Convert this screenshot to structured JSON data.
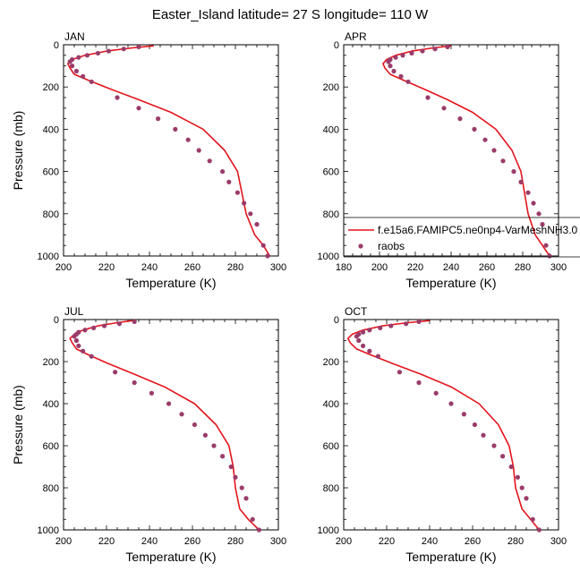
{
  "figure": {
    "title": "Easter_Island  latitude= 27 S longitude= 110 W",
    "legend": {
      "model_label": "f.e15a6.FAMIPC5.ne0np4-VarMeshNH3.0",
      "obs_label": "raobs",
      "placement": "lower-right of APR panel"
    },
    "colors": {
      "model": "#e4141c",
      "obs": "#9a3c6a"
    }
  },
  "chart_data": [
    {
      "type": "line",
      "label": "JAN",
      "xlabel": "Temperature (K)",
      "ylabel": "Pressure (mb)",
      "xlim": [
        200,
        300
      ],
      "ylim": [
        1000,
        0
      ],
      "xticks": [
        200,
        220,
        240,
        260,
        280,
        300
      ],
      "yticks": [
        0,
        200,
        400,
        600,
        800,
        1000
      ],
      "model": {
        "T": [
          242,
          232,
          220,
          210,
          204,
          202,
          203,
          205,
          212,
          222,
          235,
          250,
          265,
          275,
          281,
          283,
          285,
          289,
          293,
          296
        ],
        "P": [
          5,
          15,
          30,
          50,
          70,
          90,
          110,
          140,
          170,
          210,
          260,
          320,
          400,
          500,
          600,
          700,
          800,
          900,
          950,
          1000
        ]
      },
      "obs": {
        "T": [
          235,
          228,
          221,
          216,
          211,
          207,
          204,
          203,
          204,
          206,
          209,
          213,
          225,
          235,
          244,
          252,
          258,
          263,
          268,
          274,
          277,
          281,
          284,
          287,
          290,
          293,
          295
        ],
        "P": [
          10,
          20,
          30,
          40,
          50,
          60,
          70,
          80,
          100,
          125,
          150,
          175,
          250,
          300,
          350,
          400,
          450,
          500,
          550,
          600,
          650,
          700,
          750,
          800,
          850,
          950,
          1000
        ]
      }
    },
    {
      "type": "line",
      "label": "APR",
      "xlabel": "Temperature (K)",
      "ylabel": "",
      "xlim": [
        180,
        300
      ],
      "ylim": [
        1000,
        0
      ],
      "xticks": [
        180,
        200,
        220,
        240,
        260,
        280,
        300
      ],
      "yticks": [
        0,
        200,
        400,
        600,
        800,
        1000
      ],
      "model": {
        "T": [
          240,
          230,
          218,
          209,
          204,
          202,
          203,
          206,
          214,
          225,
          238,
          252,
          265,
          274,
          279,
          281,
          283,
          287,
          291,
          295
        ],
        "P": [
          5,
          15,
          30,
          50,
          70,
          90,
          110,
          140,
          170,
          210,
          260,
          320,
          400,
          500,
          600,
          700,
          800,
          900,
          950,
          1000
        ]
      },
      "obs": {
        "T": [
          238,
          231,
          224,
          218,
          213,
          209,
          206,
          205,
          206,
          208,
          212,
          216,
          227,
          236,
          245,
          253,
          259,
          264,
          269,
          275,
          279,
          283,
          286,
          289,
          291,
          293,
          295
        ],
        "P": [
          10,
          20,
          30,
          40,
          50,
          60,
          70,
          80,
          100,
          125,
          150,
          175,
          250,
          300,
          350,
          400,
          450,
          500,
          550,
          600,
          650,
          700,
          750,
          800,
          850,
          950,
          1000
        ]
      }
    },
    {
      "type": "line",
      "label": "JUL",
      "xlabel": "Temperature (K)",
      "ylabel": "Pressure (mb)",
      "xlim": [
        200,
        300
      ],
      "ylim": [
        1000,
        0
      ],
      "xticks": [
        200,
        220,
        240,
        260,
        280,
        300
      ],
      "yticks": [
        0,
        200,
        400,
        600,
        800,
        1000
      ],
      "model": {
        "T": [
          232,
          225,
          216,
          209,
          205,
          203,
          204,
          206,
          212,
          221,
          233,
          247,
          261,
          271,
          277,
          279,
          280,
          282,
          286,
          291
        ],
        "P": [
          5,
          15,
          30,
          50,
          70,
          90,
          110,
          140,
          170,
          210,
          260,
          320,
          400,
          500,
          600,
          700,
          800,
          900,
          950,
          1000
        ]
      },
      "obs": {
        "T": [
          233,
          226,
          219,
          214,
          210,
          207,
          206,
          205,
          206,
          207,
          209,
          213,
          224,
          233,
          241,
          249,
          255,
          261,
          266,
          270,
          274,
          278,
          280,
          283,
          285,
          288,
          291
        ],
        "P": [
          10,
          20,
          30,
          40,
          50,
          60,
          70,
          80,
          100,
          125,
          150,
          175,
          250,
          300,
          350,
          400,
          450,
          500,
          550,
          600,
          650,
          700,
          750,
          800,
          850,
          950,
          1000
        ]
      }
    },
    {
      "type": "line",
      "label": "OCT",
      "xlabel": "Temperature (K)",
      "ylabel": "",
      "xlim": [
        200,
        300
      ],
      "ylim": [
        1000,
        0
      ],
      "xticks": [
        200,
        220,
        240,
        260,
        280,
        300
      ],
      "yticks": [
        0,
        200,
        400,
        600,
        800,
        1000
      ],
      "model": {
        "T": [
          240,
          230,
          218,
          209,
          204,
          202,
          203,
          206,
          213,
          223,
          236,
          250,
          263,
          272,
          277,
          279,
          280,
          283,
          287,
          291
        ],
        "P": [
          5,
          15,
          30,
          50,
          70,
          90,
          110,
          140,
          170,
          210,
          260,
          320,
          400,
          500,
          600,
          700,
          800,
          900,
          950,
          1000
        ]
      },
      "obs": {
        "T": [
          235,
          229,
          222,
          217,
          212,
          209,
          207,
          206,
          207,
          209,
          212,
          216,
          226,
          235,
          243,
          250,
          256,
          261,
          265,
          270,
          274,
          278,
          281,
          283,
          285,
          288,
          291
        ],
        "P": [
          10,
          20,
          30,
          40,
          50,
          60,
          70,
          80,
          100,
          125,
          150,
          175,
          250,
          300,
          350,
          400,
          450,
          500,
          550,
          600,
          650,
          700,
          750,
          800,
          850,
          950,
          1000
        ]
      }
    }
  ]
}
